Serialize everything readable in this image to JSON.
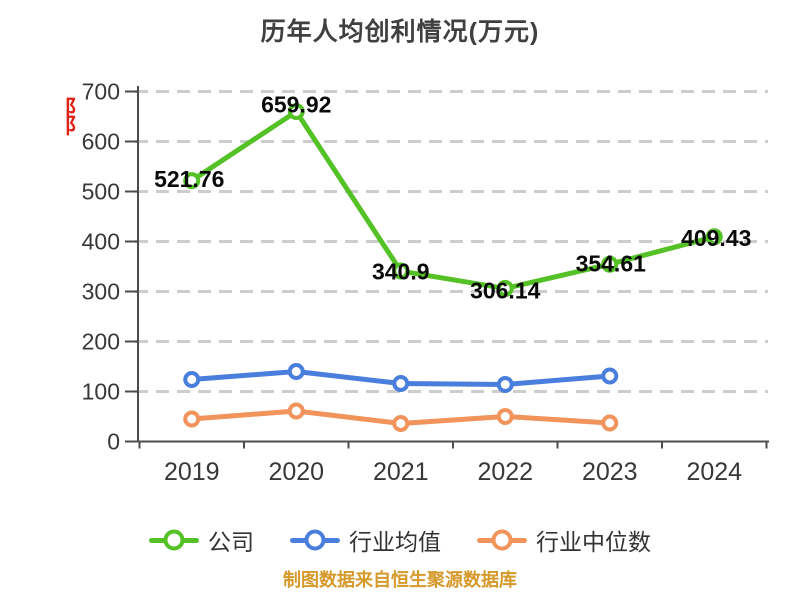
{
  "title": "历年人均创利情况(万元)",
  "watermark": {
    "text": "阝阝",
    "color": "#e02117"
  },
  "source_note": {
    "text": "制图数据来自恒生聚源数据库",
    "color": "#d6992b"
  },
  "legend": {
    "position": "bottom",
    "items": [
      {
        "label": "公司",
        "color": "#54c227"
      },
      {
        "label": "行业均值",
        "color": "#4a7edc"
      },
      {
        "label": "行业中位数",
        "color": "#f0945c"
      }
    ]
  },
  "colors": {
    "background": "#ffffff",
    "grid": "#cdcdcd",
    "axis": "#4d4d4d",
    "tick_text": "#383838",
    "data_label": "#0a0a0a",
    "title_text": "#404040"
  },
  "chart_data": {
    "type": "line",
    "title": "历年人均创利情况(万元)",
    "categories": [
      "2019",
      "2020",
      "2021",
      "2022",
      "2023",
      "2024"
    ],
    "series": [
      {
        "name": "公司",
        "color": "#54c227",
        "values": [
          521.76,
          659.92,
          340.9,
          306.14,
          354.61,
          409.43
        ],
        "labels": [
          "521.76",
          "659.92",
          "340.9",
          "306.14",
          "354.61",
          "409.43"
        ]
      },
      {
        "name": "行业均值",
        "color": "#4a7edc",
        "values": [
          124,
          140,
          116,
          114,
          131,
          null
        ]
      },
      {
        "name": "行业中位数",
        "color": "#f0945c",
        "values": [
          45,
          61,
          36,
          50,
          37,
          null
        ]
      }
    ],
    "ylim": [
      0,
      700
    ],
    "ytick_step": 100,
    "grid": "horizontal-dashed",
    "legend_position": "bottom",
    "xlabel": "",
    "ylabel": ""
  }
}
